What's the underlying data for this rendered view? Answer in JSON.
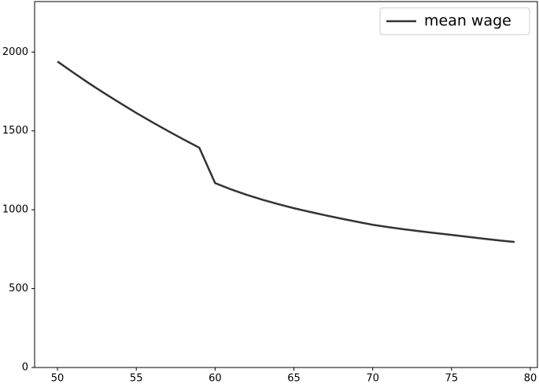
{
  "chart_data": {
    "type": "line",
    "x": [
      50,
      51,
      52,
      53,
      54,
      55,
      56,
      57,
      58,
      59,
      60,
      61,
      62,
      63,
      64,
      65,
      66,
      67,
      68,
      69,
      70,
      71,
      72,
      73,
      74,
      75,
      76,
      77,
      78,
      79
    ],
    "series": [
      {
        "name": "mean wage",
        "color": "#333333",
        "values": [
          1940,
          1870,
          1802,
          1737,
          1675,
          1614,
          1556,
          1500,
          1446,
          1393,
          1169,
          1130,
          1095,
          1064,
          1036,
          1010,
          987,
          965,
          944,
          924,
          905,
          890,
          876,
          864,
          852,
          841,
          829,
          817,
          806,
          796
        ]
      }
    ],
    "xlim": [
      48.55,
      80.45
    ],
    "ylim": [
      0,
      2320
    ],
    "xticks": [
      50,
      55,
      60,
      65,
      70,
      75,
      80
    ],
    "yticks": [
      0,
      500,
      1000,
      1500,
      2000
    ],
    "legend": "upper right"
  }
}
